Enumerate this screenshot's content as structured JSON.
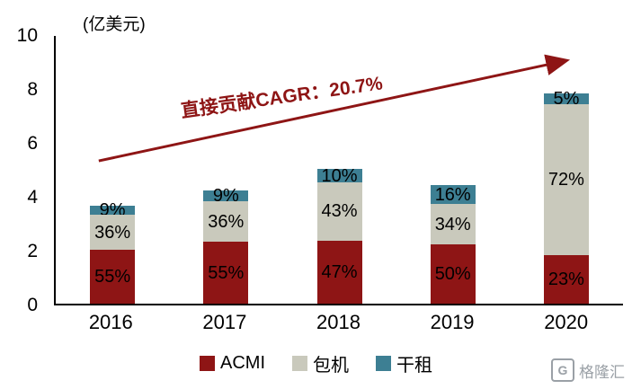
{
  "header": {
    "unit_label": "(亿美元)"
  },
  "annotation": {
    "text": "直接贡献CAGR：20.7%",
    "color": "#8E1515"
  },
  "footer": {
    "logo_text": "格隆汇",
    "logo_mark": "G"
  },
  "colors": {
    "acmi": "#8E1515",
    "charter": "#C9C9BC",
    "dry_lease": "#3D7F93",
    "arrow": "#8E1515",
    "axis": "#000000"
  },
  "chart_data": {
    "type": "bar",
    "stacked": true,
    "title": "",
    "ylabel": "(亿美元)",
    "xlabel": "",
    "ylim": [
      0,
      10
    ],
    "yticks": [
      0,
      2,
      4,
      6,
      8,
      10
    ],
    "grid": false,
    "legend_position": "bottom",
    "categories": [
      "2016",
      "2017",
      "2018",
      "2019",
      "2020"
    ],
    "series": [
      {
        "name": "ACMI",
        "color": "#8E1515",
        "values": [
          2.0,
          2.3,
          2.35,
          2.2,
          1.8
        ],
        "pct_labels": [
          "55%",
          "55%",
          "47%",
          "50%",
          "23%"
        ]
      },
      {
        "name": "包机",
        "color": "#C9C9BC",
        "values": [
          1.3,
          1.5,
          2.15,
          1.5,
          5.6
        ],
        "pct_labels": [
          "36%",
          "36%",
          "43%",
          "34%",
          "72%"
        ]
      },
      {
        "name": "干租",
        "color": "#3D7F93",
        "values": [
          0.35,
          0.4,
          0.5,
          0.7,
          0.4
        ],
        "pct_labels": [
          "9%",
          "9%",
          "10%",
          "16%",
          "5%"
        ]
      }
    ],
    "totals": [
      3.65,
      4.2,
      5.0,
      4.4,
      7.8
    ],
    "annotation": {
      "text": "直接贡献CAGR：20.7%"
    }
  }
}
